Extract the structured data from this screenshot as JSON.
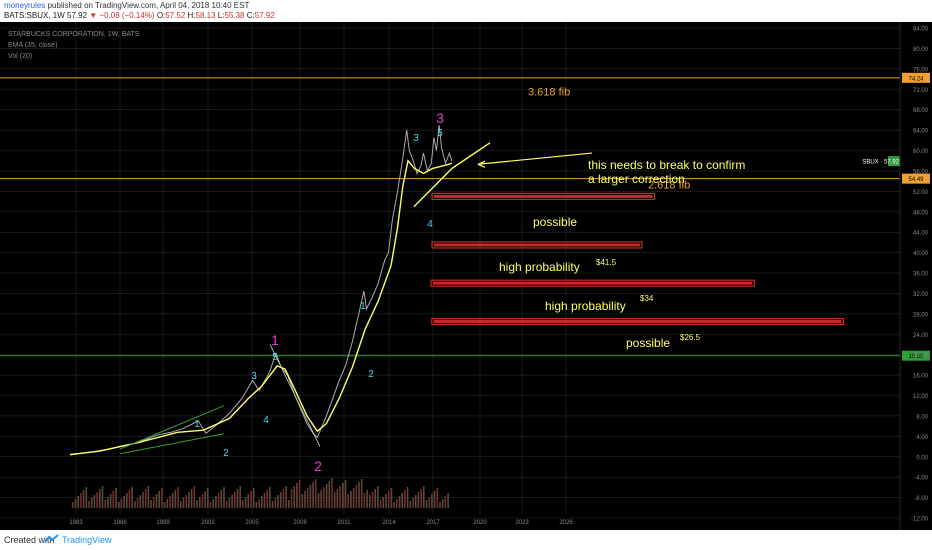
{
  "header": {
    "user": "moneyrules",
    "published_text": "published on TradingView.com, April 04, 2018 10:40 EST",
    "symbol_line": "BATS:SBUX, 1W",
    "last": "57.92",
    "change": "−0.08 (−0.14%)",
    "o_label": "O:",
    "o_value": "57.52",
    "h_label": "H:",
    "h_value": "58.13",
    "l_label": "L:",
    "l_value": "55.38",
    "c_label": "C:",
    "c_value": "57.92"
  },
  "legend": {
    "title": "STARBUCKS CORPORATION, 1W, BATS",
    "ema": "EMA (35, close)",
    "vol": "Vol (20)"
  },
  "footer": {
    "created": "Created with",
    "brand": "TradingView"
  },
  "colors": {
    "background": "#000000",
    "price": "#aaaaaa",
    "ema": "#ffff66",
    "wave_cyan": "#4dd9e6",
    "wave_magenta": "#e040c8",
    "fib": "#f0a030",
    "annot": "#ffff66",
    "zone": "#c62828",
    "level19": "#2e9e3a",
    "grid": "#2a2a2a"
  },
  "chart_data": {
    "type": "line",
    "title": "STARBUCKS CORPORATION, 1W, BATS",
    "xlabel": "",
    "ylabel": "",
    "xlim": [
      1982,
      2030
    ],
    "ylim": [
      -13,
      85
    ],
    "grid": true,
    "x_ticks": [
      "1983",
      "1986",
      "1999",
      "2002",
      "2005",
      "2008",
      "2011",
      "2014",
      "2017",
      "2020",
      "2023",
      "2026"
    ],
    "y_ticks": [
      "84.00",
      "80.00",
      "76.00",
      "72.00",
      "68.00",
      "64.00",
      "60.00",
      "56.00",
      "52.00",
      "48.00",
      "44.00",
      "40.00",
      "36.00",
      "32.00",
      "28.00",
      "24.00",
      "20.00",
      "16.00",
      "12.00",
      "8.00",
      "4.00",
      "0.00",
      "-4.00",
      "-8.00",
      "-12.00"
    ],
    "series": [
      {
        "name": "SBUX",
        "values": [
          [
            1982.7,
            0.5
          ],
          [
            1983.5,
            0.7
          ],
          [
            1984.5,
            1.0
          ],
          [
            1985.5,
            1.4
          ],
          [
            1986.5,
            2.0
          ],
          [
            1987.5,
            2.5
          ],
          [
            1988.5,
            3.3
          ],
          [
            1989.5,
            4.3
          ],
          [
            1990.5,
            4.8
          ],
          [
            1991.5,
            5.6
          ],
          [
            1992.6,
            7.0
          ],
          [
            1993.2,
            4.6
          ],
          [
            1994.0,
            6.2
          ],
          [
            1995.0,
            8.5
          ],
          [
            1996.0,
            11.5
          ],
          [
            1996.8,
            15.0
          ],
          [
            1997.3,
            13.0
          ],
          [
            1998.1,
            16.5
          ],
          [
            1998.6,
            20.2
          ],
          [
            1999.0,
            17.6
          ],
          [
            1999.5,
            16.0
          ],
          [
            2000.0,
            12.5
          ],
          [
            2000.5,
            9.5
          ],
          [
            2001.0,
            6.5
          ],
          [
            2001.5,
            4.5
          ],
          [
            2001.8,
            3.8
          ],
          [
            2002.0,
            5.0
          ],
          [
            2002.5,
            8.0
          ],
          [
            2003.0,
            11.5
          ],
          [
            2003.5,
            15.0
          ],
          [
            2004.0,
            18.0
          ],
          [
            2004.5,
            22.5
          ],
          [
            2005.0,
            28.0
          ],
          [
            2005.4,
            32.5
          ],
          [
            2005.6,
            29.0
          ],
          [
            2006.0,
            31.0
          ],
          [
            2006.5,
            34.0
          ],
          [
            2007.0,
            38.5
          ],
          [
            2007.3,
            40.0
          ],
          [
            2007.6,
            46.5
          ],
          [
            2008.0,
            52.0
          ],
          [
            2008.4,
            58.5
          ],
          [
            2008.7,
            64.0
          ],
          [
            2008.9,
            60.0
          ],
          [
            2009.2,
            58.0
          ],
          [
            2009.5,
            55.5
          ],
          [
            2009.8,
            57.0
          ],
          [
            2010.0,
            59.5
          ],
          [
            2010.3,
            56.0
          ],
          [
            2010.6,
            57.5
          ],
          [
            2010.8,
            62.5
          ],
          [
            2011.0,
            60.0
          ],
          [
            2011.2,
            65.0
          ],
          [
            2011.4,
            60.5
          ],
          [
            2011.7,
            57.5
          ],
          [
            2012.0,
            59.5
          ],
          [
            2012.2,
            57.9
          ]
        ]
      },
      {
        "name": "EMA (35, close)",
        "values": [
          [
            1982.7,
            0.4
          ],
          [
            1985.0,
            1.1
          ],
          [
            1988.0,
            2.8
          ],
          [
            1991.0,
            4.8
          ],
          [
            1993.0,
            5.2
          ],
          [
            1995.0,
            7.5
          ],
          [
            1996.5,
            11.5
          ],
          [
            1997.5,
            13.8
          ],
          [
            1998.7,
            17.8
          ],
          [
            1999.3,
            17.2
          ],
          [
            2000.0,
            13.5
          ],
          [
            2001.0,
            8.0
          ],
          [
            2001.8,
            5.0
          ],
          [
            2002.5,
            6.5
          ],
          [
            2003.5,
            11.5
          ],
          [
            2004.5,
            17.5
          ],
          [
            2005.5,
            25.0
          ],
          [
            2006.5,
            30.5
          ],
          [
            2007.5,
            37.5
          ],
          [
            2008.0,
            45.0
          ],
          [
            2008.4,
            53.0
          ],
          [
            2008.8,
            58.0
          ],
          [
            2009.3,
            56.5
          ],
          [
            2010.0,
            55.5
          ],
          [
            2010.7,
            56.5
          ],
          [
            2011.5,
            57.0
          ],
          [
            2012.2,
            57.5
          ]
        ]
      }
    ],
    "horizontal_levels": [
      {
        "value": 74.24,
        "label": "74.24",
        "color": "#f0a030"
      },
      {
        "value": 54.49,
        "label": "54.49",
        "color": "#f0a030"
      },
      {
        "value": 19.8,
        "label": "19.80",
        "color": "#2e9e3a"
      },
      {
        "value": 57.92,
        "label": "SBUX · 57.92",
        "color": "#2e9e3a"
      }
    ],
    "zones": [
      {
        "y": 51.0,
        "x_from": 2012.0,
        "x_to": 2017.3,
        "label": "possible",
        "price": ""
      },
      {
        "y": 41.5,
        "x_from": 2012.0,
        "x_to": 2017.0,
        "label": "high probability",
        "price": "$41.5"
      },
      {
        "y": 34.0,
        "x_from": 2011.5,
        "x_to": 2019.2,
        "label": "high probability",
        "price": "$34"
      },
      {
        "y": 26.5,
        "x_from": 2011.9,
        "x_to": 2021.7,
        "label": "possible",
        "price": "$26.5"
      }
    ],
    "fib_labels": [
      {
        "text": "3.618 fib",
        "x": 2016.5,
        "y": 71.5
      },
      {
        "text": "2.618 fib",
        "x": 2017.8,
        "y": 52.8
      }
    ],
    "wave_labels": [
      {
        "text": "1",
        "x": 1993.0,
        "y": 10.5,
        "color": "cyan"
      },
      {
        "text": "2",
        "x": 1993.3,
        "y": 2.5,
        "color": "cyan"
      },
      {
        "text": "3",
        "x": 1996.7,
        "y": 19.0,
        "color": "cyan"
      },
      {
        "text": "4",
        "x": 1997.6,
        "y": 11.5,
        "color": "cyan"
      },
      {
        "text": "5",
        "x": 1998.6,
        "y": 23.5,
        "color": "cyan"
      },
      {
        "text": "1",
        "x": 1998.6,
        "y": 27.5,
        "color": "magenta"
      },
      {
        "text": "2",
        "x": 2001.8,
        "y": -1.0,
        "color": "magenta"
      },
      {
        "text": "1",
        "x": 2004.8,
        "y": 34.5,
        "color": "cyan"
      },
      {
        "text": "2",
        "x": 2005.3,
        "y": 21.5,
        "color": "cyan"
      },
      {
        "text": "3",
        "x": 2008.2,
        "y": 65.5,
        "color": "cyan"
      },
      {
        "text": "4",
        "x": 2009.3,
        "y": 48.0,
        "color": "cyan"
      },
      {
        "text": "5",
        "x": 2010.7,
        "y": 67.5,
        "color": "cyan"
      },
      {
        "text": "3",
        "x": 2010.6,
        "y": 71.5,
        "color": "magenta"
      }
    ],
    "annotations": [
      {
        "text": "this needs to break to confirm",
        "x": 2014.3,
        "y": 60.5
      },
      {
        "text": "a larger correction",
        "x": 2014.3,
        "y": 57.8
      }
    ]
  }
}
